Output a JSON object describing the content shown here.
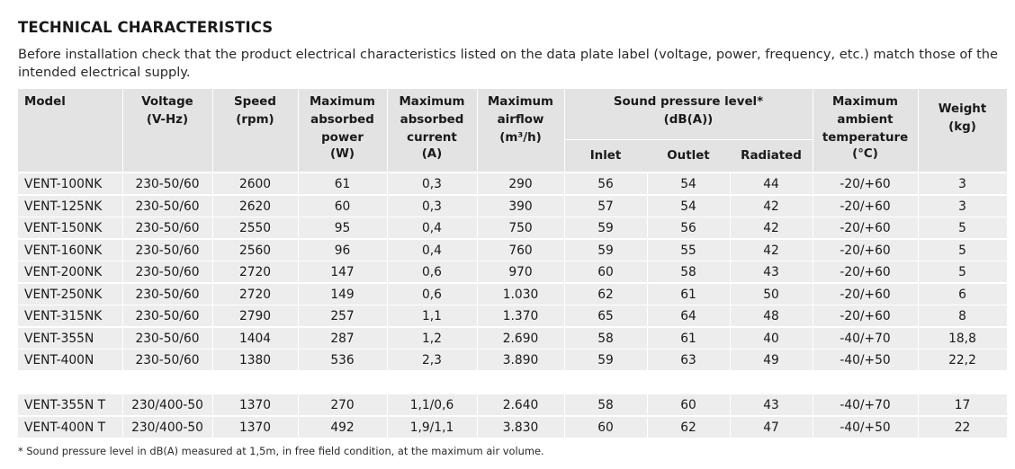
{
  "title": "TECHNICAL CHARACTERISTICS",
  "intro": "Before installation check that the product electrical characteristics listed on the data plate label (voltage, power, frequency, etc.) match those of the intended electrical supply.",
  "headers": {
    "model": "Model",
    "voltage": [
      "Voltage",
      "(V-Hz)"
    ],
    "speed": [
      "Speed",
      "(rpm)"
    ],
    "power": [
      "Maximum",
      "absorbed",
      "power",
      "(W)"
    ],
    "current": [
      "Maximum",
      "absorbed",
      "current",
      "(A)"
    ],
    "airflow": [
      "Maximum",
      "airflow",
      "(m³/h)"
    ],
    "sound": [
      "Sound pressure level*",
      "(dB(A))"
    ],
    "inlet": "Inlet",
    "outlet": "Outlet",
    "radiated": "Radiated",
    "temp": [
      "Maximum",
      "ambient",
      "temperature",
      "(°C)"
    ],
    "weight": [
      "Weight",
      "(kg)"
    ]
  },
  "rows": [
    [
      "VENT-100NK",
      "230-50/60",
      "2600",
      "61",
      "0,3",
      "290",
      "56",
      "54",
      "44",
      "-20/+60",
      "3"
    ],
    [
      "VENT-125NK",
      "230-50/60",
      "2620",
      "60",
      "0,3",
      "390",
      "57",
      "54",
      "42",
      "-20/+60",
      "3"
    ],
    [
      "VENT-150NK",
      "230-50/60",
      "2550",
      "95",
      "0,4",
      "750",
      "59",
      "56",
      "42",
      "-20/+60",
      "5"
    ],
    [
      "VENT-160NK",
      "230-50/60",
      "2560",
      "96",
      "0,4",
      "760",
      "59",
      "55",
      "42",
      "-20/+60",
      "5"
    ],
    [
      "VENT-200NK",
      "230-50/60",
      "2720",
      "147",
      "0,6",
      "970",
      "60",
      "58",
      "43",
      "-20/+60",
      "5"
    ],
    [
      "VENT-250NK",
      "230-50/60",
      "2720",
      "149",
      "0,6",
      "1.030",
      "62",
      "61",
      "50",
      "-20/+60",
      "6"
    ],
    [
      "VENT-315NK",
      "230-50/60",
      "2790",
      "257",
      "1,1",
      "1.370",
      "65",
      "64",
      "48",
      "-20/+60",
      "8"
    ],
    [
      "VENT-355N",
      "230-50/60",
      "1404",
      "287",
      "1,2",
      "2.690",
      "58",
      "61",
      "40",
      "-40/+70",
      "18,8"
    ],
    [
      "VENT-400N",
      "230-50/60",
      "1380",
      "536",
      "2,3",
      "3.890",
      "59",
      "63",
      "49",
      "-40/+50",
      "22,2"
    ]
  ],
  "rows_three_phase": [
    [
      "VENT-355N T",
      "230/400-50",
      "1370",
      "270",
      "1,1/0,6",
      "2.640",
      "58",
      "60",
      "43",
      "-40/+70",
      "17"
    ],
    [
      "VENT-400N T",
      "230/400-50",
      "1370",
      "492",
      "1,9/1,1",
      "3.830",
      "60",
      "62",
      "47",
      "-40/+50",
      "22"
    ]
  ],
  "footnote": "* Sound pressure level in dB(A) measured at 1,5m, in free field condition, at the maximum air volume."
}
